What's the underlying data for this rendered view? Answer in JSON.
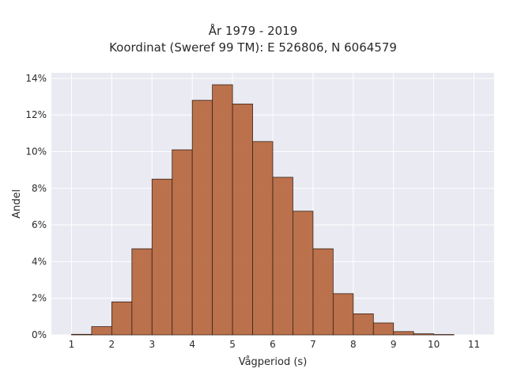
{
  "chart_data": {
    "type": "bar",
    "title_line1": "År 1979 - 2019",
    "title_line2": "Koordinat (Sweref 99 TM): E 526806, N 6064579",
    "xlabel": "Vågperiod (s)",
    "ylabel": "Andel",
    "xlim": [
      0.5,
      11.5
    ],
    "ylim": [
      0,
      14.3
    ],
    "x_ticks": [
      1,
      2,
      3,
      4,
      5,
      6,
      7,
      8,
      9,
      10,
      11
    ],
    "y_ticks": [
      0,
      2,
      4,
      6,
      8,
      10,
      12,
      14
    ],
    "y_tick_labels": [
      "0%",
      "2%",
      "4%",
      "6%",
      "8%",
      "10%",
      "12%",
      "14%"
    ],
    "bin_width": 0.5,
    "bins": [
      {
        "start": 1.0,
        "value": 0.03
      },
      {
        "start": 1.5,
        "value": 0.45
      },
      {
        "start": 2.0,
        "value": 1.8
      },
      {
        "start": 2.5,
        "value": 4.7
      },
      {
        "start": 3.0,
        "value": 8.5
      },
      {
        "start": 3.5,
        "value": 10.1
      },
      {
        "start": 4.0,
        "value": 12.8
      },
      {
        "start": 4.5,
        "value": 13.65
      },
      {
        "start": 5.0,
        "value": 12.6
      },
      {
        "start": 5.5,
        "value": 10.55
      },
      {
        "start": 6.0,
        "value": 8.6
      },
      {
        "start": 6.5,
        "value": 6.75
      },
      {
        "start": 7.0,
        "value": 4.7
      },
      {
        "start": 7.5,
        "value": 2.25
      },
      {
        "start": 8.0,
        "value": 1.15
      },
      {
        "start": 8.5,
        "value": 0.65
      },
      {
        "start": 9.0,
        "value": 0.18
      },
      {
        "start": 9.5,
        "value": 0.06
      },
      {
        "start": 10.0,
        "value": 0.02
      }
    ],
    "bar_color": "#b5643a",
    "bar_edge_color": "#3a2418",
    "background_color": "#eaeaf2",
    "grid": true,
    "legend": "none"
  }
}
